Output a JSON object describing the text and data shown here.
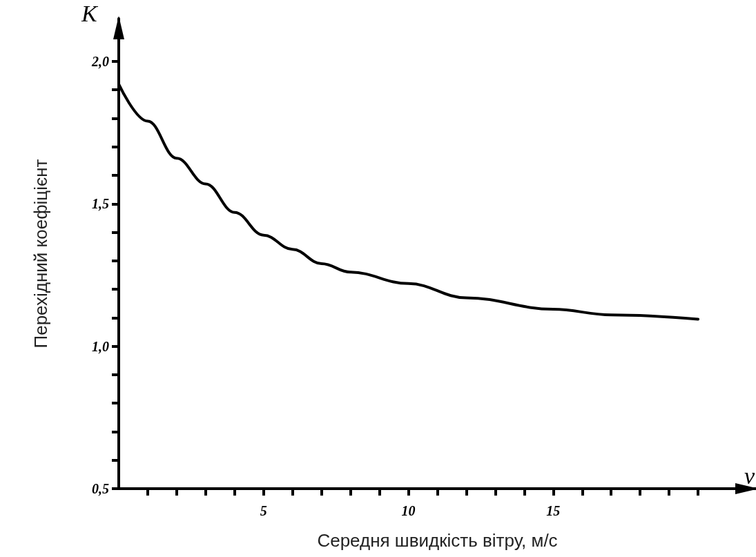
{
  "chart_data": {
    "type": "line",
    "xlabel": "Середня швидкість вітру, м/с",
    "ylabel": "Перехідний коефіцієнт",
    "annotations": [
      "K",
      "v"
    ],
    "x": [
      0,
      1,
      2,
      3,
      4,
      5,
      6,
      7,
      8,
      10,
      12,
      15,
      17,
      20
    ],
    "series": [
      {
        "color": "#000000",
        "values": [
          1.92,
          1.79,
          1.66,
          1.57,
          1.47,
          1.39,
          1.34,
          1.29,
          1.26,
          1.22,
          1.17,
          1.13,
          1.11,
          1.095
        ]
      }
    ],
    "xlim": [
      0,
      22
    ],
    "ylim": [
      0.5,
      2.15
    ],
    "xticks": [
      {
        "value": 1,
        "label": null
      },
      {
        "value": 2,
        "label": null
      },
      {
        "value": 3,
        "label": null
      },
      {
        "value": 4,
        "label": null
      },
      5,
      {
        "value": 6,
        "label": null
      },
      {
        "value": 7,
        "label": null
      },
      {
        "value": 8,
        "label": null
      },
      {
        "value": 9,
        "label": null
      },
      10,
      {
        "value": 11,
        "label": null
      },
      {
        "value": 12,
        "label": null
      },
      {
        "value": 13,
        "label": null
      },
      {
        "value": 14,
        "label": null
      },
      15,
      {
        "value": 16,
        "label": null
      },
      {
        "value": 17,
        "label": null
      },
      {
        "value": 18,
        "label": null
      },
      {
        "value": 19,
        "label": null
      },
      {
        "value": 20,
        "label": null
      }
    ],
    "yticks": [
      {
        "value": 0.5,
        "label": "0,5"
      },
      {
        "value": 0.6,
        "label": null
      },
      {
        "value": 0.7,
        "label": null
      },
      {
        "value": 0.8,
        "label": null
      },
      {
        "value": 0.9,
        "label": null
      },
      {
        "value": 1.0,
        "label": "1,0"
      },
      {
        "value": 1.1,
        "label": null
      },
      {
        "value": 1.2,
        "label": null
      },
      {
        "value": 1.3,
        "label": null
      },
      {
        "value": 1.4,
        "label": null
      },
      {
        "value": 1.5,
        "label": "1,5"
      },
      {
        "value": 1.6,
        "label": null
      },
      {
        "value": 1.7,
        "label": null
      },
      {
        "value": 1.8,
        "label": null
      },
      {
        "value": 1.9,
        "label": null
      },
      {
        "value": 2.0,
        "label": "2,0"
      }
    ],
    "grid": false,
    "marker": "none",
    "line_style": "solid"
  }
}
